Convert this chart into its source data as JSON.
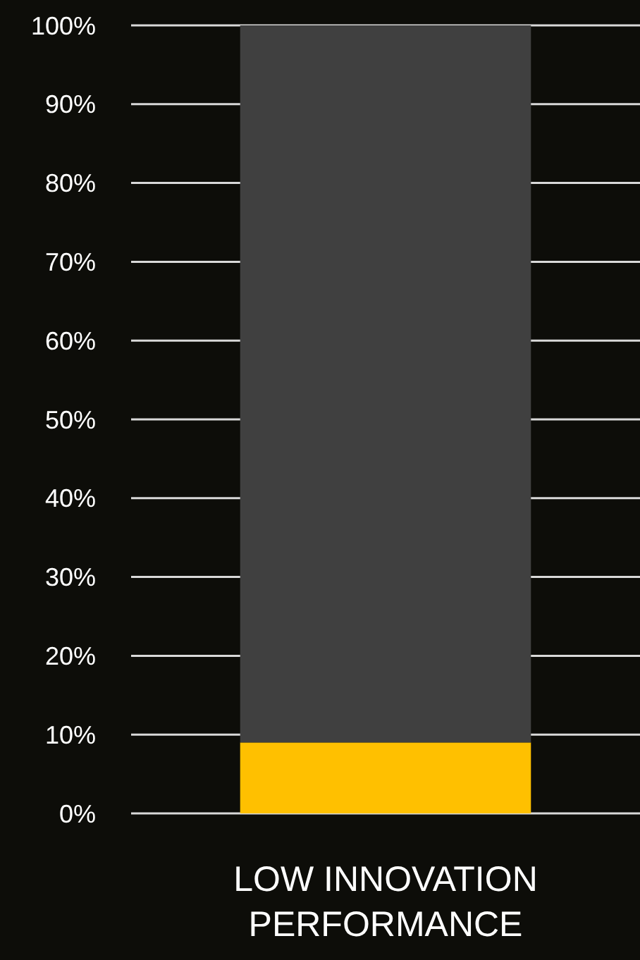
{
  "chart_data": {
    "type": "bar",
    "stacked": true,
    "categories": [
      "LOW INNOVATION PERFORMANCE"
    ],
    "series": [
      {
        "color": "#ffc000",
        "values": [
          9
        ]
      },
      {
        "color": "#404040",
        "values": [
          91
        ]
      }
    ],
    "ylim": [
      0,
      100
    ],
    "yticks": [
      {
        "value": 0,
        "label": "0%"
      },
      {
        "value": 10,
        "label": "10%"
      },
      {
        "value": 20,
        "label": "20%"
      },
      {
        "value": 30,
        "label": "30%"
      },
      {
        "value": 40,
        "label": "40%"
      },
      {
        "value": 50,
        "label": "50%"
      },
      {
        "value": 60,
        "label": "60%"
      },
      {
        "value": 70,
        "label": "70%"
      },
      {
        "value": 80,
        "label": "80%"
      },
      {
        "value": 90,
        "label": "90%"
      },
      {
        "value": 100,
        "label": "100%"
      }
    ],
    "grid": "y"
  }
}
